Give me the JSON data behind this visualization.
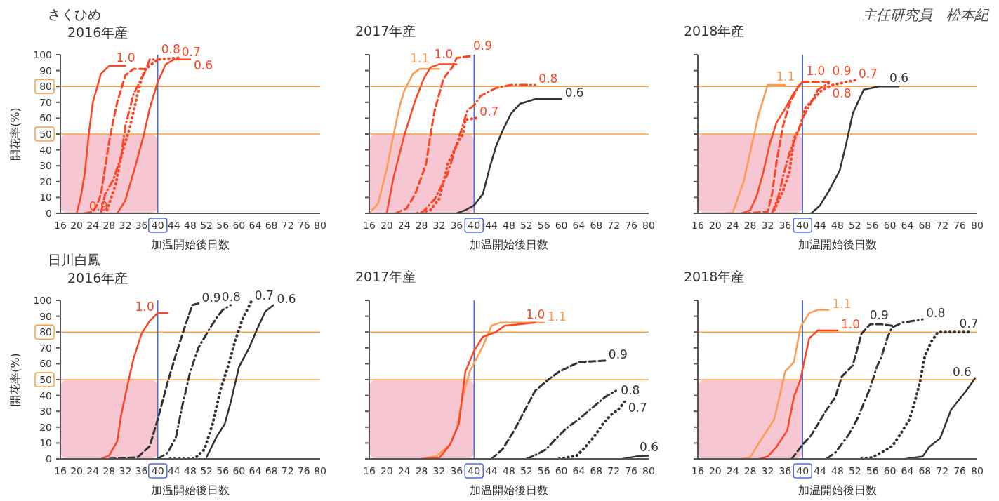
{
  "chart_data": [
    {
      "type": "line",
      "title": "さくひめ",
      "subtitle": "2016年産",
      "xlabel": "加温開始後日数",
      "ylabel": "開花率(%)",
      "xlim": [
        16,
        80
      ],
      "xticks": [
        16,
        20,
        24,
        28,
        32,
        36,
        40,
        44,
        48,
        52,
        56,
        60,
        64,
        68,
        72,
        76,
        80
      ],
      "ylim": [
        0,
        100
      ],
      "yticks": [
        0,
        10,
        20,
        30,
        40,
        50,
        60,
        70,
        80,
        90,
        100
      ],
      "ref_lines": [
        {
          "axis": "y",
          "value": 80,
          "color": "#ffa040"
        },
        {
          "axis": "y",
          "value": 50,
          "color": "#ffa040"
        },
        {
          "axis": "x",
          "value": 40,
          "color": "#4a6ee0"
        }
      ],
      "bands": [
        {
          "axis": "x",
          "from": 16,
          "to": 40,
          "color": "#f5bccb"
        }
      ],
      "series": [
        {
          "name": "1.0",
          "color": "#ff4422",
          "line_style": "solid",
          "x": [
            20,
            21,
            22,
            23,
            24,
            26,
            28,
            32
          ],
          "values": [
            0,
            10,
            25,
            50,
            70,
            88,
            93,
            93
          ]
        },
        {
          "name": "0.9",
          "color": "#ff4422",
          "line_style": "dashed",
          "x": [
            22,
            24,
            25,
            26,
            28,
            29,
            30,
            32,
            34,
            37
          ],
          "values": [
            0,
            1,
            5,
            12,
            45,
            58,
            70,
            87,
            91,
            91
          ]
        },
        {
          "name": "0.8",
          "color": "#ff4422",
          "line_style": "dashdot",
          "x": [
            26,
            27,
            29,
            31,
            32,
            34,
            37,
            38,
            40
          ],
          "values": [
            0,
            12,
            21,
            36,
            55,
            75,
            90,
            97,
            97
          ]
        },
        {
          "name": "0.7",
          "color": "#ff4422",
          "line_style": "dotted",
          "x": [
            27.5,
            29.6,
            31,
            33,
            35,
            36,
            37,
            40,
            45
          ],
          "values": [
            2,
            18,
            36,
            53,
            75,
            85,
            91,
            97,
            98
          ]
        },
        {
          "name": "0.6",
          "color": "#ff4422",
          "line_style": "solid",
          "x": [
            30,
            32,
            34.5,
            36.5,
            38,
            40,
            42,
            44,
            48
          ],
          "values": [
            0,
            8,
            30,
            49,
            66,
            83,
            94,
            97,
            97
          ]
        }
      ]
    },
    {
      "type": "line",
      "title": "2017年産",
      "xlabel": "加温開始後日数",
      "xlim": [
        16,
        80
      ],
      "xticks": [
        16,
        20,
        24,
        28,
        32,
        36,
        40,
        44,
        48,
        52,
        56,
        60,
        64,
        68,
        72,
        76,
        80
      ],
      "ylim": [
        0,
        100
      ],
      "yticks": [
        0,
        10,
        20,
        30,
        40,
        50,
        60,
        70,
        80,
        90,
        100
      ],
      "tick_labels": "x",
      "ref_lines": [
        {
          "axis": "y",
          "value": 80,
          "color": "#ffa040"
        },
        {
          "axis": "y",
          "value": 50,
          "color": "#ffa040"
        },
        {
          "axis": "x",
          "value": 40,
          "color": "#4a6ee0"
        }
      ],
      "bands": [
        {
          "axis": "x",
          "from": 16,
          "to": 40,
          "color": "#f5bccb"
        }
      ],
      "series": [
        {
          "name": "1.1",
          "color": "#ff9a50",
          "line_style": "solid",
          "x": [
            16,
            18,
            20,
            21.5,
            23,
            24,
            26,
            27.5,
            32
          ],
          "values": [
            0,
            6,
            28,
            49,
            68,
            77,
            88,
            91,
            91
          ]
        },
        {
          "name": "1.0",
          "color": "#ff4422",
          "line_style": "solid",
          "x": [
            20,
            21.5,
            24,
            26.5,
            28.5,
            30,
            32,
            36
          ],
          "values": [
            0,
            22,
            49,
            71,
            85,
            92,
            94,
            94
          ]
        },
        {
          "name": "0.9",
          "color": "#ff4422",
          "line_style": "dashed",
          "x": [
            22,
            24.5,
            26.5,
            29,
            30,
            31,
            33,
            35,
            36,
            39
          ],
          "values": [
            0,
            3,
            12,
            31,
            49,
            65,
            85,
            92,
            98,
            99
          ]
        },
        {
          "name": "0.8",
          "color": "#ff4422",
          "line_style": "dashdot",
          "x": [
            28,
            31,
            34,
            35.5,
            37,
            38.5,
            40,
            41.5,
            45,
            48.5,
            54
          ],
          "values": [
            0,
            9,
            25,
            39,
            52,
            65,
            68,
            74,
            79,
            81,
            81
          ]
        },
        {
          "name": "0.7",
          "color": "#ff4422",
          "line_style": "dotted",
          "x": [
            27,
            30,
            32,
            33,
            34,
            35.5,
            36.5,
            37.5,
            38,
            40.5
          ],
          "values": [
            0,
            2,
            9,
            20,
            31,
            40,
            46,
            50,
            59,
            60
          ]
        },
        {
          "name": "0.6",
          "color": "#333333",
          "line_style": "solid",
          "x": [
            36,
            38,
            40,
            42,
            43.5,
            45,
            46.5,
            48.5,
            50.5,
            54,
            60
          ],
          "values": [
            0,
            2,
            5,
            12,
            28,
            42,
            52,
            63,
            69,
            72,
            72
          ]
        }
      ]
    },
    {
      "type": "line",
      "title": "2018年産",
      "xlabel": "加温開始後日数",
      "annotations": [
        "主任研究員　松本紀"
      ],
      "xlim": [
        16,
        80
      ],
      "xticks": [
        16,
        20,
        24,
        28,
        32,
        36,
        40,
        44,
        48,
        52,
        56,
        60,
        64,
        68,
        72,
        76,
        80
      ],
      "ylim": [
        0,
        100
      ],
      "yticks": [
        0,
        10,
        20,
        30,
        40,
        50,
        60,
        70,
        80,
        90,
        100
      ],
      "tick_labels": "x",
      "ref_lines": [
        {
          "axis": "y",
          "value": 80,
          "color": "#ffa040"
        },
        {
          "axis": "y",
          "value": 50,
          "color": "#ffa040"
        },
        {
          "axis": "x",
          "value": 40,
          "color": "#4a6ee0"
        }
      ],
      "bands": [
        {
          "axis": "x",
          "from": 16,
          "to": 40,
          "color": "#f5bccb"
        }
      ],
      "series": [
        {
          "name": "1.1",
          "color": "#ff9a50",
          "line_style": "solid",
          "x": [
            22,
            24,
            26.5,
            28.5,
            30,
            32,
            36
          ],
          "values": [
            0,
            0.5,
            20,
            45,
            63,
            81,
            81
          ]
        },
        {
          "name": "1.0",
          "color": "#ff4422",
          "line_style": "solid",
          "x": [
            26,
            28,
            29.5,
            31,
            32.5,
            34,
            36,
            38,
            40
          ],
          "values": [
            0,
            2,
            11,
            26,
            44,
            57,
            66,
            76,
            83
          ]
        },
        {
          "name": "0.9",
          "color": "#ff4422",
          "line_style": "dashed",
          "x": [
            26.5,
            32,
            33,
            34,
            35.5,
            37,
            39,
            40,
            46
          ],
          "values": [
            0,
            1,
            12,
            32,
            55,
            69,
            80,
            83,
            83
          ]
        },
        {
          "name": "0.8",
          "color": "#ff4422",
          "line_style": "dashdot",
          "x": [
            33,
            34.5,
            35.5,
            37,
            39,
            40,
            42,
            43.5,
            46
          ],
          "values": [
            0,
            11,
            23,
            38,
            52,
            60,
            70,
            78,
            82
          ]
        },
        {
          "name": "0.7",
          "color": "#ff4422",
          "line_style": "dotted",
          "x": [
            33.5,
            35.5,
            37,
            38,
            39.5,
            40.5,
            42.5,
            44.5,
            47,
            50.5,
            52
          ],
          "values": [
            2,
            14,
            26,
            47,
            55,
            66,
            72,
            78,
            81,
            83,
            84
          ]
        },
        {
          "name": "0.6",
          "color": "#333333",
          "line_style": "solid",
          "x": [
            42,
            44,
            46,
            48.5,
            50,
            51.5,
            54,
            57.5,
            62
          ],
          "values": [
            0,
            5,
            14,
            27,
            44,
            63,
            78,
            80,
            80
          ]
        }
      ]
    },
    {
      "type": "line",
      "title": "日川白鳳",
      "subtitle": "2016年産",
      "xlabel": "加温開始後日数",
      "ylabel": "開花率(%)",
      "xlim": [
        16,
        80
      ],
      "xticks": [
        16,
        20,
        24,
        28,
        32,
        36,
        40,
        44,
        48,
        52,
        56,
        60,
        64,
        68,
        72,
        76,
        80
      ],
      "ylim": [
        0,
        100
      ],
      "yticks": [
        0,
        10,
        20,
        30,
        40,
        50,
        60,
        70,
        80,
        90,
        100
      ],
      "ref_lines": [
        {
          "axis": "y",
          "value": 80,
          "color": "#ffa040"
        },
        {
          "axis": "y",
          "value": 50,
          "color": "#ffa040"
        },
        {
          "axis": "x",
          "value": 40,
          "color": "#4a6ee0"
        }
      ],
      "bands": [
        {
          "axis": "x",
          "from": 16,
          "to": 40,
          "color": "#f5bccb"
        }
      ],
      "series": [
        {
          "name": "1.0",
          "color": "#ff4422",
          "line_style": "solid",
          "x": [
            26,
            28,
            30,
            31,
            32.5,
            34,
            36,
            38,
            40,
            42.5
          ],
          "values": [
            0,
            2,
            11,
            28,
            46,
            63,
            79,
            87,
            92,
            92
          ]
        },
        {
          "name": "0.9",
          "color": "#333333",
          "line_style": "dashed",
          "x": [
            28,
            35,
            38,
            40,
            42.5,
            44.5,
            46.5,
            48.5,
            50
          ],
          "values": [
            0,
            1,
            8,
            25,
            49,
            66,
            82,
            97,
            98
          ]
        },
        {
          "name": "0.8",
          "color": "#333333",
          "line_style": "dashdot",
          "x": [
            40,
            42.5,
            44.5,
            46,
            48,
            50,
            52.5,
            54.5,
            56,
            58
          ],
          "values": [
            0,
            4,
            14,
            33,
            55,
            70,
            81,
            89,
            94,
            97
          ]
        },
        {
          "name": "0.7",
          "color": "#333333",
          "line_style": "dotted",
          "x": [
            43,
            49,
            51.5,
            53.5,
            55.5,
            57.5,
            59,
            61,
            63
          ],
          "values": [
            0,
            0,
            6,
            22,
            44,
            60,
            74,
            89,
            99
          ]
        },
        {
          "name": "0.6",
          "color": "#333333",
          "line_style": "solid",
          "x": [
            52,
            54.5,
            56.5,
            58,
            60,
            62.5,
            64.5,
            66.5,
            68.5
          ],
          "values": [
            1,
            14,
            22,
            36,
            58,
            70,
            82,
            93,
            97
          ]
        }
      ]
    },
    {
      "type": "line",
      "title": "2017年産",
      "xlabel": "加温開始後日数",
      "xlim": [
        16,
        80
      ],
      "xticks": [
        16,
        20,
        24,
        28,
        32,
        36,
        40,
        44,
        48,
        52,
        56,
        60,
        64,
        68,
        72,
        76,
        80
      ],
      "ylim": [
        0,
        100
      ],
      "yticks": [
        0,
        10,
        20,
        30,
        40,
        50,
        60,
        70,
        80,
        90,
        100
      ],
      "tick_labels": "x",
      "ref_lines": [
        {
          "axis": "y",
          "value": 80,
          "color": "#ffa040"
        },
        {
          "axis": "y",
          "value": 50,
          "color": "#ffa040"
        },
        {
          "axis": "x",
          "value": 40,
          "color": "#4a6ee0"
        }
      ],
      "bands": [
        {
          "axis": "x",
          "from": 16,
          "to": 40,
          "color": "#f5bccb"
        }
      ],
      "series": [
        {
          "name": "1.1",
          "color": "#ff9a50",
          "line_style": "solid",
          "x": [
            28,
            31.5,
            34.5,
            36,
            37.5,
            39,
            42,
            44,
            46,
            56
          ],
          "values": [
            0,
            2,
            9,
            19,
            40,
            55,
            71,
            84,
            86,
            86
          ]
        },
        {
          "name": "1.0",
          "color": "#ff4422",
          "line_style": "solid",
          "x": [
            28,
            32,
            34.5,
            36.5,
            38,
            40,
            42,
            45,
            47,
            54
          ],
          "values": [
            0,
            0.5,
            9,
            22,
            55,
            68,
            77,
            80,
            84,
            86
          ]
        },
        {
          "name": "0.9",
          "color": "#333333",
          "line_style": "dashed",
          "x": [
            44,
            46.5,
            49,
            51.5,
            54,
            57,
            59.5,
            64,
            70
          ],
          "values": [
            0,
            6,
            17,
            30,
            43,
            50,
            55,
            61,
            62
          ]
        },
        {
          "name": "0.8",
          "color": "#333333",
          "line_style": "dashdot",
          "x": [
            52,
            54.5,
            56.5,
            58.5,
            61,
            64,
            67,
            70,
            72.5
          ],
          "values": [
            0,
            3,
            6,
            12,
            19,
            25,
            32,
            39,
            43
          ]
        },
        {
          "name": "0.7",
          "color": "#333333",
          "line_style": "dotted",
          "x": [
            59.5,
            63.5,
            65,
            67.5,
            69.5,
            71.5,
            73,
            74.5
          ],
          "values": [
            0,
            2,
            6,
            14,
            22,
            28,
            31,
            36
          ]
        },
        {
          "name": "0.6",
          "color": "#333333",
          "line_style": "solid",
          "x": [
            74,
            77,
            80
          ],
          "values": [
            0,
            1.5,
            2
          ]
        }
      ]
    },
    {
      "type": "line",
      "title": "2018年産",
      "xlabel": "加温開始後日数",
      "xlim": [
        16,
        80
      ],
      "xticks": [
        16,
        20,
        24,
        28,
        32,
        36,
        40,
        44,
        48,
        52,
        56,
        60,
        64,
        68,
        72,
        76,
        80
      ],
      "ylim": [
        0,
        100
      ],
      "yticks": [
        0,
        10,
        20,
        30,
        40,
        50,
        60,
        70,
        80,
        90,
        100
      ],
      "tick_labels": "x",
      "ref_lines": [
        {
          "axis": "y",
          "value": 80,
          "color": "#ffa040"
        },
        {
          "axis": "y",
          "value": 50,
          "color": "#ffa040"
        },
        {
          "axis": "x",
          "value": 40,
          "color": "#4a6ee0"
        }
      ],
      "bands": [
        {
          "axis": "x",
          "from": 16,
          "to": 40,
          "color": "#f5bccb"
        }
      ],
      "series": [
        {
          "name": "1.1",
          "color": "#ff9a50",
          "line_style": "solid",
          "x": [
            26,
            28,
            30,
            33.5,
            36,
            38,
            39.5,
            41.5,
            43.5,
            46
          ],
          "values": [
            0,
            1,
            10,
            25,
            55,
            61,
            83,
            92,
            94,
            94
          ]
        },
        {
          "name": "1.0",
          "color": "#ff4422",
          "line_style": "solid",
          "x": [
            30,
            32,
            34,
            36.5,
            38,
            39.5,
            41.5,
            43.5,
            48
          ],
          "values": [
            0,
            1.5,
            7.5,
            18,
            39,
            50,
            76,
            81,
            81
          ]
        },
        {
          "name": "0.9",
          "color": "#333333",
          "line_style": "dashed",
          "x": [
            37.5,
            40,
            42,
            45.5,
            47.5,
            49,
            51.5,
            53.5,
            55.5,
            58,
            60.5
          ],
          "values": [
            0,
            9,
            15,
            31,
            39,
            52,
            59,
            79,
            85,
            85,
            84
          ]
        },
        {
          "name": "0.8",
          "color": "#333333",
          "line_style": "dashdot",
          "x": [
            45.5,
            47.5,
            50.5,
            52.5,
            55.5,
            57,
            58,
            59.5,
            60.5,
            63,
            67.5
          ],
          "values": [
            0,
            4,
            15,
            25,
            45,
            58,
            64,
            77,
            83,
            86,
            88
          ]
        },
        {
          "name": "0.7",
          "color": "#333333",
          "line_style": "dotted",
          "x": [
            53.5,
            56,
            58,
            60.5,
            62.5,
            64.5,
            66,
            67,
            68,
            69.5,
            71,
            78
          ],
          "values": [
            0,
            1,
            4,
            8,
            16,
            25,
            39,
            50,
            65,
            74,
            80,
            80
          ]
        },
        {
          "name": "0.6",
          "color": "#333333",
          "line_style": "solid",
          "x": [
            63.5,
            67.5,
            69,
            71.5,
            74,
            77.5,
            79.5
          ],
          "values": [
            0,
            1.5,
            7.5,
            13,
            31,
            43,
            51
          ]
        }
      ]
    }
  ]
}
